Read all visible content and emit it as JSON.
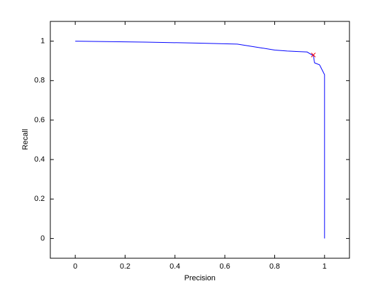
{
  "chart_data": {
    "type": "line",
    "x_label": "Precision",
    "y_label": "Recall",
    "series": [
      {
        "color": "#0000ff",
        "x": [
          0,
          0.1,
          0.28,
          0.5,
          0.65,
          0.7,
          0.75,
          0.8,
          0.85,
          0.93,
          0.95,
          0.955,
          0.96,
          0.98,
          0.99,
          1.0,
          1.0
        ],
        "values": [
          1,
          0.998,
          0.995,
          0.99,
          0.985,
          0.975,
          0.965,
          0.955,
          0.95,
          0.945,
          0.93,
          0.93,
          0.89,
          0.88,
          0.855,
          0.83,
          0
        ]
      },
      {
        "color": "#ff0000",
        "marker": "x",
        "x": [
          0.955
        ],
        "values": [
          0.93
        ]
      }
    ],
    "xlim": [
      -0.1,
      1.1
    ],
    "ylim": [
      -0.1,
      1.1
    ],
    "xticks": [
      0,
      0.2,
      0.4,
      0.6,
      0.8,
      1
    ],
    "yticks": [
      0,
      0.2,
      0.4,
      0.6,
      0.8,
      1
    ],
    "grid": false
  }
}
